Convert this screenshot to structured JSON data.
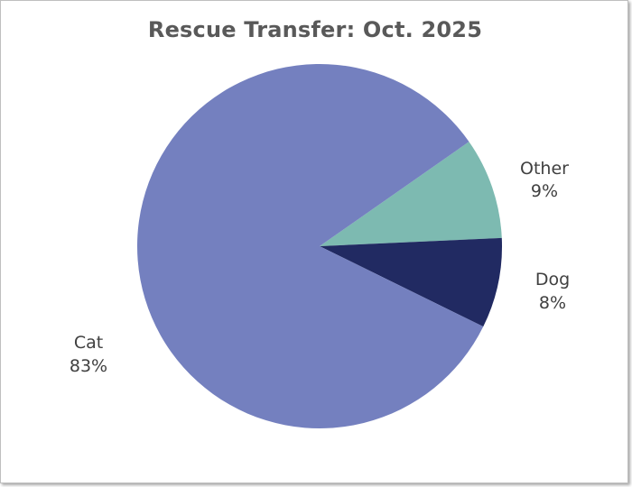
{
  "chart_data": {
    "type": "pie",
    "title": "Rescue Transfer: Oct. 2025",
    "categories": [
      "Other",
      "Dog",
      "Cat"
    ],
    "values": [
      9,
      8,
      83
    ],
    "value_labels": [
      "9%",
      "8%",
      "83%"
    ],
    "colors": [
      "#7dbab1",
      "#212a62",
      "#7480bf"
    ],
    "legend": "none"
  }
}
